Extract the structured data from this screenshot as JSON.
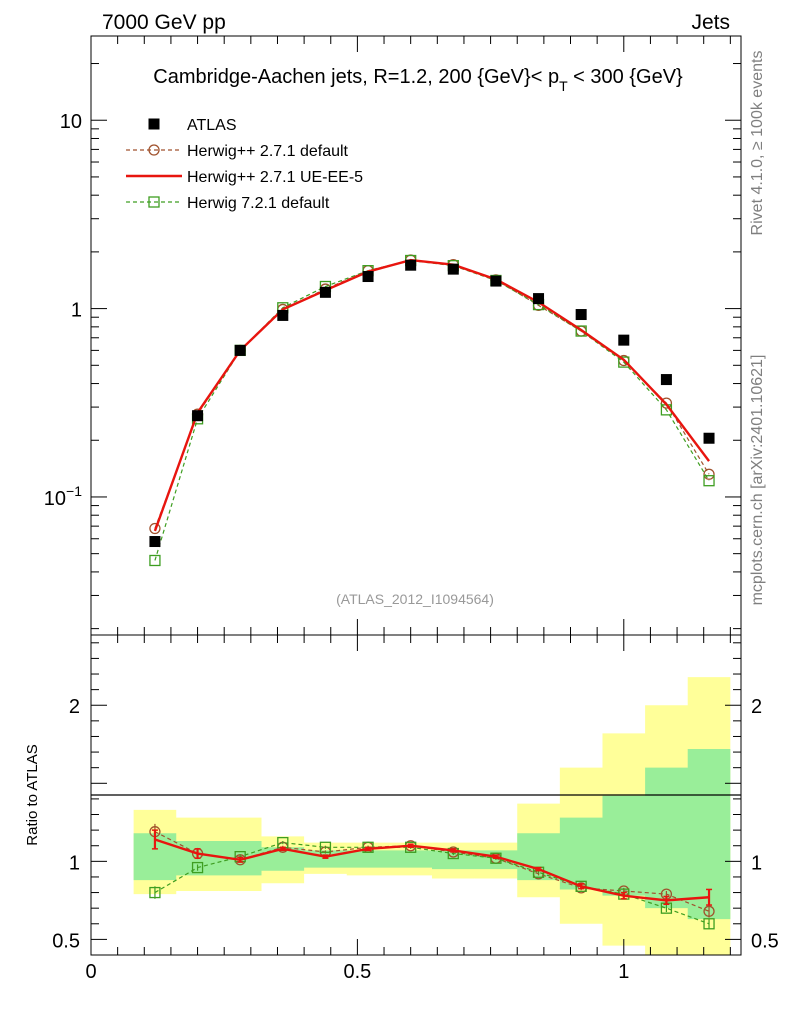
{
  "header": {
    "left": "7000 GeV pp",
    "right": "Jets"
  },
  "side_labels": {
    "rivet": "Rivet 4.1.0, ≥ 100k events",
    "mcplots": "mcplots.cern.ch [arXiv:2401.10621]"
  },
  "chart_data": {
    "type": "scatter",
    "title": "Cambridge-Aachen jets, R=1.2,  200 {GeV}< p_T < 300 {GeV}",
    "title_parts": {
      "prefix": "Cambridge-Aachen jets, R=1.2,  200 {GeV}< p",
      "subscript": "T",
      "suffix": " < 300 {GeV}"
    },
    "analysis_tag": "(ATLAS_2012_I1094564)",
    "x": [
      0.12,
      0.2,
      0.28,
      0.36,
      0.44,
      0.52,
      0.6,
      0.68,
      0.76,
      0.84,
      0.92,
      1.0,
      1.08,
      1.16
    ],
    "x_bin_edges": [
      0.08,
      0.16,
      0.24,
      0.32,
      0.4,
      0.48,
      0.56,
      0.64,
      0.72,
      0.8,
      0.88,
      0.96,
      1.04,
      1.12,
      1.2
    ],
    "xlim": [
      0,
      1.22
    ],
    "xticks": [
      {
        "value": 0,
        "label": "0"
      },
      {
        "value": 0.5,
        "label": "0.5"
      },
      {
        "value": 1,
        "label": "1"
      }
    ],
    "main_panel": {
      "yscale": "log",
      "ylim": [
        0.0185,
        28
      ],
      "ytick_labels": [
        {
          "value": 0.1,
          "base": "10",
          "exp": "−1"
        },
        {
          "value": 1,
          "base": "1",
          "exp": ""
        },
        {
          "value": 10,
          "base": "10",
          "exp": ""
        }
      ],
      "legend": {
        "position": "top-left"
      },
      "series": [
        {
          "name": "ATLAS",
          "style": "data",
          "color": "#000000",
          "values": [
            0.058,
            0.27,
            0.6,
            0.92,
            1.22,
            1.48,
            1.7,
            1.62,
            1.4,
            1.13,
            0.93,
            0.68,
            0.42,
            0.205
          ]
        },
        {
          "name": "Herwig++ 2.7.1 default",
          "style": "circle-dashed",
          "color": "#a0522d",
          "values": [
            0.068,
            0.275,
            0.6,
            0.99,
            1.27,
            1.59,
            1.81,
            1.71,
            1.42,
            1.04,
            0.76,
            0.53,
            0.315,
            0.132
          ]
        },
        {
          "name": "Herwig++ 2.7.1 UE-EE-5",
          "style": "line",
          "color": "#e8150f",
          "values": [
            0.066,
            0.28,
            0.6,
            0.99,
            1.25,
            1.57,
            1.81,
            1.71,
            1.43,
            1.08,
            0.77,
            0.535,
            0.31,
            0.155
          ]
        },
        {
          "name": "Herwig 7.2.1 default",
          "style": "square-dashed",
          "color": "#3e9e21",
          "values": [
            0.046,
            0.26,
            0.6,
            1.01,
            1.31,
            1.59,
            1.8,
            1.69,
            1.41,
            1.05,
            0.76,
            0.52,
            0.29,
            0.122
          ]
        }
      ]
    },
    "ratio_panel": {
      "ylabel": "Ratio to ATLAS",
      "ylim": [
        0.4,
        2.45
      ],
      "ytick_labels": [
        {
          "value": 0.5,
          "label": "0.5"
        },
        {
          "value": 1,
          "label": "1"
        },
        {
          "value": 2,
          "label": "2"
        }
      ],
      "band_inner": {
        "color": "#99ee99",
        "lo": [
          0.88,
          0.91,
          0.91,
          0.94,
          0.96,
          0.96,
          0.96,
          0.95,
          0.95,
          0.88,
          0.82,
          0.78,
          0.7,
          0.63
        ],
        "hi": [
          1.18,
          1.13,
          1.13,
          1.09,
          1.07,
          1.07,
          1.07,
          1.07,
          1.07,
          1.18,
          1.28,
          1.42,
          1.6,
          1.72
        ]
      },
      "band_outer": {
        "color": "#ffff99",
        "lo": [
          0.79,
          0.81,
          0.81,
          0.86,
          0.92,
          0.91,
          0.91,
          0.89,
          0.89,
          0.77,
          0.6,
          0.46,
          0.39,
          0.33
        ],
        "hi": [
          1.33,
          1.28,
          1.28,
          1.16,
          1.12,
          1.12,
          1.12,
          1.12,
          1.12,
          1.37,
          1.6,
          1.82,
          2.0,
          2.18
        ]
      },
      "series": [
        {
          "name": "Herwig++ 2.7.1 default",
          "style": "circle-dashed",
          "color": "#a0522d",
          "values": [
            1.19,
            1.05,
            1.01,
            1.09,
            1.06,
            1.09,
            1.1,
            1.06,
            1.02,
            0.92,
            0.83,
            0.81,
            0.79,
            0.68
          ],
          "errors": [
            0.05,
            0.02,
            0.015,
            0.01,
            0.01,
            0.01,
            0.01,
            0.01,
            0.01,
            0.01,
            0.015,
            0.02,
            0.02,
            0.04
          ]
        },
        {
          "name": "Herwig++ 2.7.1 UE-EE-5",
          "style": "line",
          "color": "#e8150f",
          "values": [
            1.14,
            1.05,
            1.01,
            1.08,
            1.03,
            1.08,
            1.1,
            1.07,
            1.03,
            0.95,
            0.84,
            0.78,
            0.75,
            0.77
          ],
          "errors": [
            0.06,
            0.03,
            0.015,
            0.01,
            0.01,
            0.01,
            0.01,
            0.01,
            0.01,
            0.01,
            0.015,
            0.02,
            0.025,
            0.05
          ]
        },
        {
          "name": "Herwig 7.2.1 default",
          "style": "square-dashed",
          "color": "#3e9e21",
          "values": [
            0.8,
            0.96,
            1.03,
            1.12,
            1.09,
            1.09,
            1.09,
            1.05,
            1.02,
            0.93,
            0.84,
            0.79,
            0.7,
            0.6
          ],
          "errors": [
            0.04,
            0.02,
            0.015,
            0.01,
            0.01,
            0.01,
            0.01,
            0.01,
            0.01,
            0.01,
            0.015,
            0.02,
            0.025,
            0.03
          ]
        }
      ]
    }
  }
}
